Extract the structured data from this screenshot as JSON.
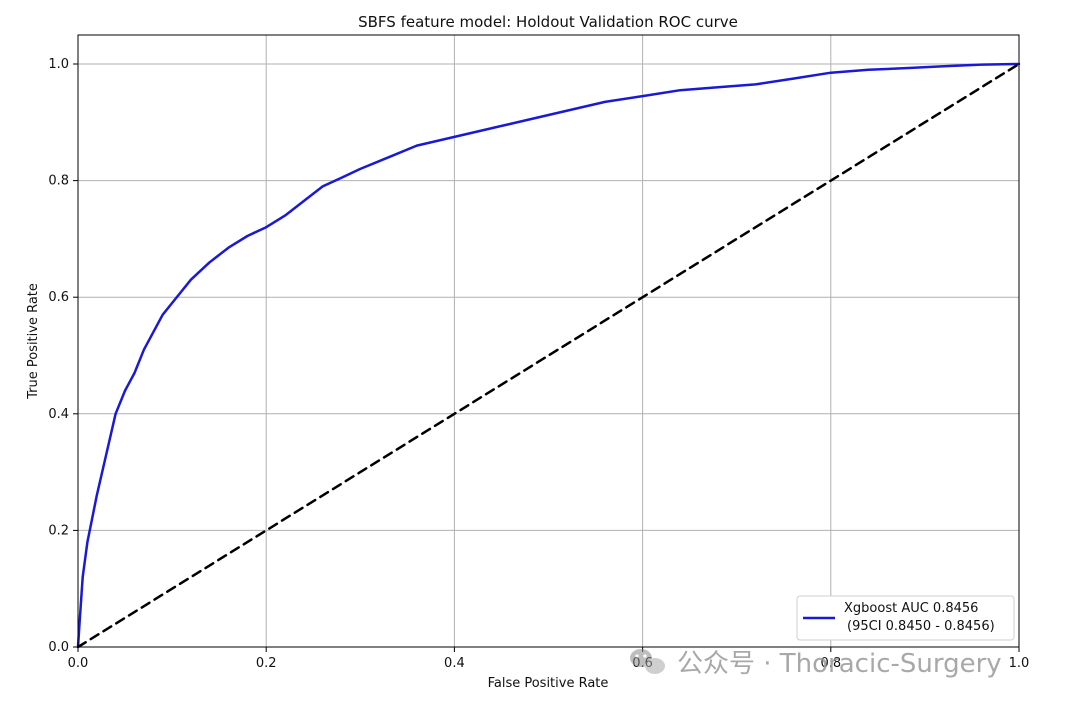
{
  "chart_data": {
    "type": "line",
    "title": "SBFS feature model: Holdout Validation ROC curve",
    "xlabel": "False Positive Rate",
    "ylabel": "True Positive Rate",
    "xlim": [
      0.0,
      1.0
    ],
    "ylim": [
      0.0,
      1.0
    ],
    "x_ticks": [
      "0.0",
      "0.2",
      "0.4",
      "0.6",
      "0.8",
      "1.0"
    ],
    "y_ticks": [
      "0.0",
      "0.2",
      "0.4",
      "0.6",
      "0.8",
      "1.0"
    ],
    "grid": true,
    "legend_position": "lower-right",
    "series": [
      {
        "name": "Xgboost AUC 0.8456",
        "name_line2": "(95CI 0.8450 - 0.8456)",
        "color": "#1a1ad6",
        "style": "solid",
        "x": [
          0.0,
          0.002,
          0.005,
          0.01,
          0.015,
          0.02,
          0.03,
          0.04,
          0.05,
          0.06,
          0.07,
          0.08,
          0.09,
          0.1,
          0.12,
          0.14,
          0.16,
          0.18,
          0.2,
          0.22,
          0.24,
          0.26,
          0.28,
          0.3,
          0.33,
          0.36,
          0.4,
          0.44,
          0.48,
          0.52,
          0.56,
          0.6,
          0.64,
          0.68,
          0.72,
          0.76,
          0.8,
          0.84,
          0.88,
          0.92,
          0.96,
          1.0
        ],
        "y": [
          0.0,
          0.05,
          0.12,
          0.18,
          0.22,
          0.26,
          0.33,
          0.4,
          0.44,
          0.47,
          0.51,
          0.54,
          0.57,
          0.59,
          0.63,
          0.66,
          0.685,
          0.705,
          0.72,
          0.74,
          0.765,
          0.79,
          0.805,
          0.82,
          0.84,
          0.86,
          0.875,
          0.89,
          0.905,
          0.92,
          0.935,
          0.945,
          0.955,
          0.96,
          0.965,
          0.975,
          0.985,
          0.99,
          0.993,
          0.996,
          0.999,
          1.0
        ]
      },
      {
        "name": "",
        "color": "#000000",
        "style": "dashed",
        "x": [
          0.0,
          1.0
        ],
        "y": [
          0.0,
          1.0
        ]
      }
    ]
  },
  "watermark": {
    "text": "公众号 · Thoracic-Surgery",
    "icon": "wechat-icon"
  }
}
